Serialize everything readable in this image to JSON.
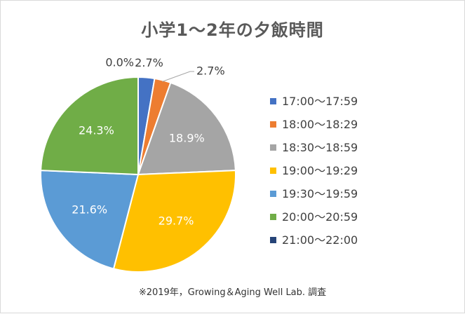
{
  "chart_data": {
    "type": "pie",
    "title": "小学1～2年の夕飯時間",
    "categories": [
      "17:00～17:59",
      "18:00～18:29",
      "18:30～18:59",
      "19:00～19:29",
      "19:30～19:59",
      "20:00～20:59",
      "21:00～22:00"
    ],
    "values": [
      2.7,
      2.7,
      18.9,
      29.7,
      21.6,
      24.3,
      0.0
    ],
    "value_labels": [
      "2.7%",
      "2.7%",
      "18.9%",
      "29.7%",
      "21.6%",
      "24.3%",
      "0.0%"
    ],
    "colors": [
      "#4472c4",
      "#ed7d31",
      "#a5a5a5",
      "#ffc000",
      "#5b9bd5",
      "#70ad47",
      "#264478"
    ],
    "legend_position": "right",
    "start_angle_deg": 0,
    "direction": "clockwise"
  },
  "footer": {
    "source": "※2019年，Growing＆Aging Well Lab. 調査"
  }
}
